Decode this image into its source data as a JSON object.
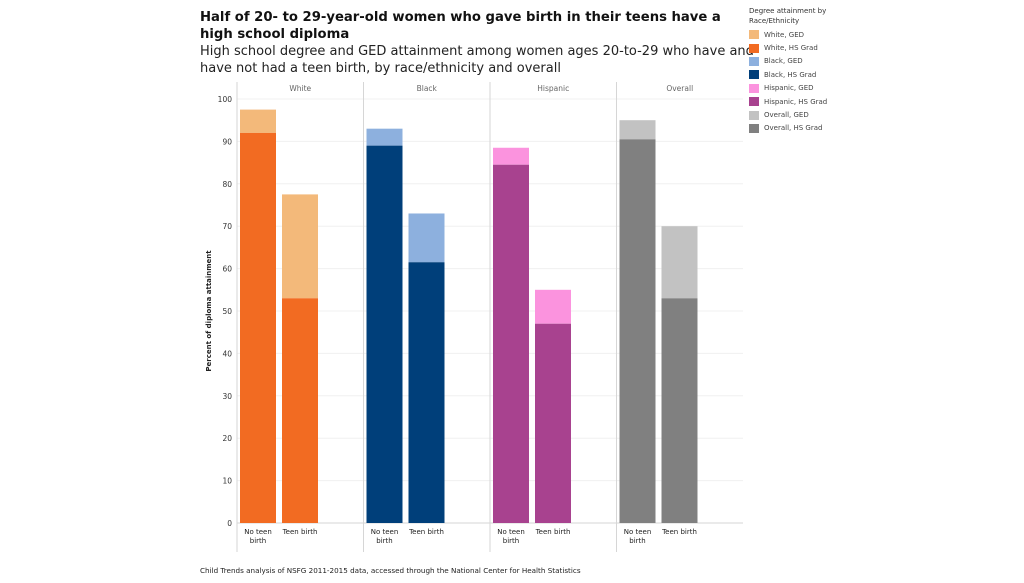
{
  "title": "Half of 20- to 29-year-old women who gave birth in their teens have a high school diploma",
  "subtitle": "High school degree and GED attainment among women ages 20-to-29 who have and have not had a teen birth, by race/ethnicity and overall",
  "footnote": "Child Trends analysis of NSFG 2011-2015 data, accessed through the National Center for Health Statistics",
  "legend": {
    "title": "Degree attainment by Race/Ethnicity",
    "items": [
      {
        "label": "White, GED",
        "color": "#f3b97a"
      },
      {
        "label": "White, HS Grad",
        "color": "#f26b22"
      },
      {
        "label": "Black, GED",
        "color": "#8db0de"
      },
      {
        "label": "Black, HS Grad",
        "color": "#003f7a"
      },
      {
        "label": "Hispanic, GED",
        "color": "#fb93de"
      },
      {
        "label": "Hispanic, HS Grad",
        "color": "#a8428f"
      },
      {
        "label": "Overall, GED",
        "color": "#c2c2c2"
      },
      {
        "label": "Overall, HS Grad",
        "color": "#808080"
      }
    ]
  },
  "chart_data": {
    "type": "bar",
    "stacked": true,
    "title": "Half of 20- to 29-year-old women who gave birth in their teens have a high school diploma",
    "ylabel": "Percent of diploma attainment",
    "xlabel": "",
    "ylim": [
      0,
      100
    ],
    "yticks": [
      0,
      10,
      20,
      30,
      40,
      50,
      60,
      70,
      80,
      90,
      100
    ],
    "grid": true,
    "legend_position": "top-right",
    "panels": [
      {
        "name": "White",
        "hs_color": "#f26b22",
        "ged_color": "#f3b97a",
        "bars": [
          {
            "category": "No teen birth",
            "hs_grad": 92,
            "ged": 5.5
          },
          {
            "category": "Teen birth",
            "hs_grad": 53,
            "ged": 24.5
          }
        ]
      },
      {
        "name": "Black",
        "hs_color": "#003f7a",
        "ged_color": "#8db0de",
        "bars": [
          {
            "category": "No teen birth",
            "hs_grad": 89,
            "ged": 4
          },
          {
            "category": "Teen birth",
            "hs_grad": 61.5,
            "ged": 11.5
          }
        ]
      },
      {
        "name": "Hispanic",
        "hs_color": "#a8428f",
        "ged_color": "#fb93de",
        "bars": [
          {
            "category": "No teen birth",
            "hs_grad": 84.5,
            "ged": 4
          },
          {
            "category": "Teen birth",
            "hs_grad": 47,
            "ged": 8
          }
        ]
      },
      {
        "name": "Overall",
        "hs_color": "#808080",
        "ged_color": "#c2c2c2",
        "bars": [
          {
            "category": "No teen birth",
            "hs_grad": 90.5,
            "ged": 4.5
          },
          {
            "category": "Teen birth",
            "hs_grad": 53,
            "ged": 17
          }
        ]
      }
    ]
  }
}
